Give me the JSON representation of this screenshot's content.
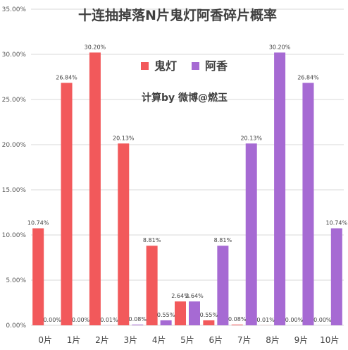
{
  "chart_data": {
    "type": "bar",
    "title": "十连抽掉落N片鬼灯阿香碎片概率",
    "annotation": "计算by 微博@燃玉",
    "categories": [
      "0片",
      "1片",
      "2片",
      "3片",
      "4片",
      "5片",
      "6片",
      "7片",
      "8片",
      "9片",
      "10片"
    ],
    "series": [
      {
        "name": "鬼灯",
        "color": "#f2595b",
        "values": [
          10.74,
          26.84,
          30.2,
          20.13,
          8.81,
          2.64,
          0.55,
          0.08,
          0.01,
          0.0,
          0.0
        ],
        "labels": [
          "10.74%",
          "26.84%",
          "30.20%",
          "20.13%",
          "8.81%",
          "2.64%",
          "0.55%",
          "0.08%",
          "0.01%",
          "0.00%",
          "0.00%"
        ]
      },
      {
        "name": "阿香",
        "color": "#a66ad3",
        "values": [
          0.0,
          0.0,
          0.01,
          0.08,
          0.55,
          2.64,
          8.81,
          20.13,
          30.2,
          26.84,
          10.74
        ],
        "labels": [
          "0.00%",
          "0.00%",
          "0.01%",
          "0.08%",
          "0.55%",
          "2.64%",
          "8.81%",
          "20.13%",
          "30.20%",
          "26.84%",
          "10.74%"
        ]
      }
    ],
    "yticks": [
      "0.00%",
      "5.00%",
      "10.00%",
      "15.00%",
      "20.00%",
      "25.00%",
      "30.00%",
      "35.00%"
    ],
    "ylim": [
      0,
      35
    ],
    "ytick_step": 5,
    "grid": true,
    "legend_position": "top-center"
  }
}
